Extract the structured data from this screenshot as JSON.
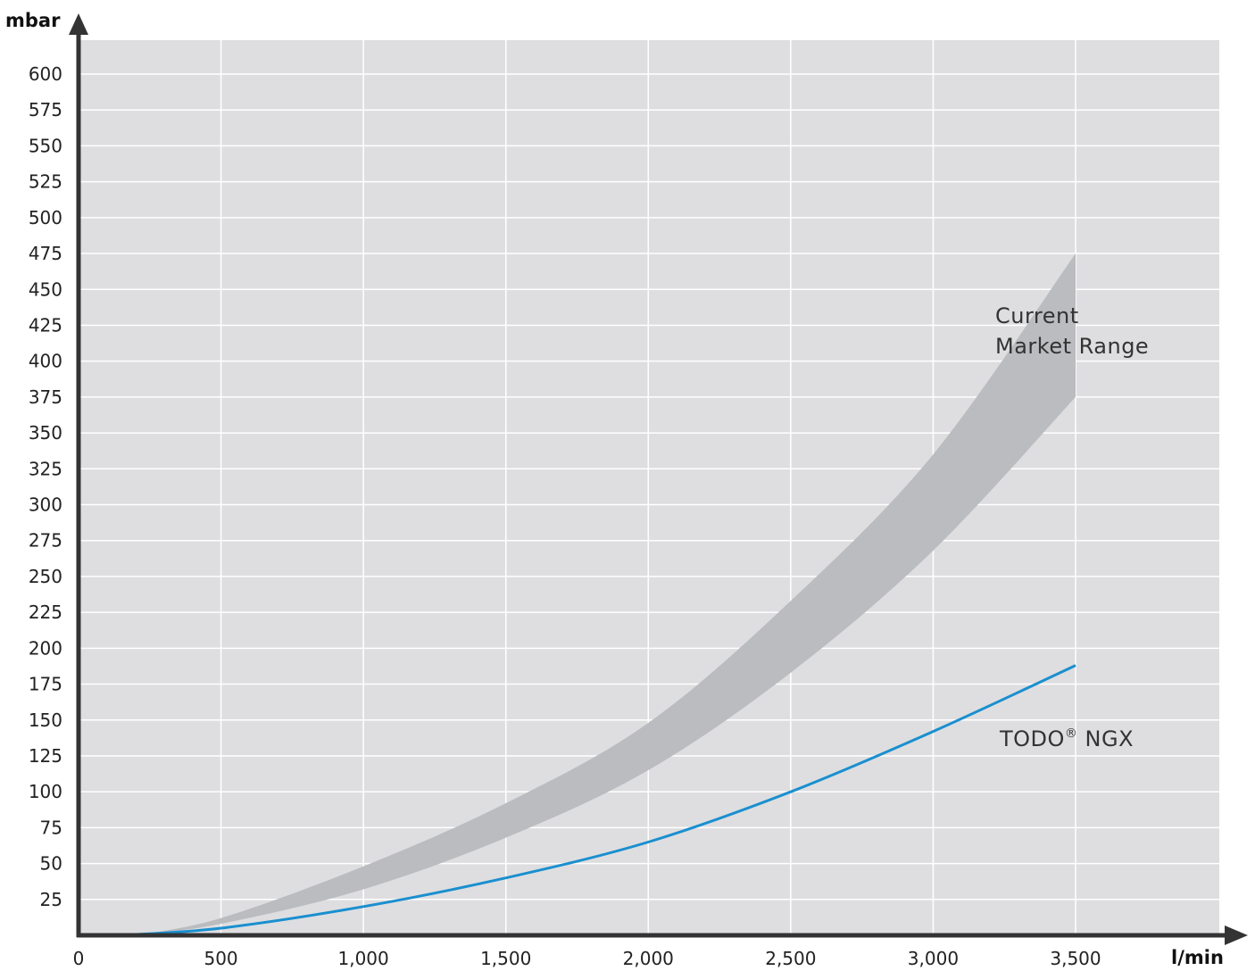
{
  "chart_data": {
    "type": "area",
    "title": "",
    "xlabel": "l/min",
    "ylabel": "mbar",
    "xlim": [
      0,
      3950
    ],
    "ylim": [
      0,
      630
    ],
    "x_ticks": [
      0,
      500,
      1000,
      1500,
      2000,
      2500,
      3000,
      3500
    ],
    "x_tick_labels": [
      "0",
      "500",
      "1,000",
      "1,500",
      "2,000",
      "2,500",
      "3,000",
      "3,500"
    ],
    "y_ticks": [
      25,
      50,
      75,
      100,
      125,
      150,
      175,
      200,
      225,
      250,
      275,
      300,
      325,
      350,
      375,
      400,
      425,
      450,
      475,
      500,
      525,
      550,
      575,
      600
    ],
    "y_tick_labels": [
      "25",
      "50",
      "75",
      "100",
      "125",
      "150",
      "175",
      "200",
      "225",
      "250",
      "275",
      "300",
      "325",
      "350",
      "375",
      "400",
      "425",
      "450",
      "475",
      "500",
      "525",
      "550",
      "575",
      "600"
    ],
    "grid": true,
    "band": {
      "x": [
        200,
        500,
        1000,
        1500,
        2000,
        2500,
        3000,
        3500
      ],
      "upper": [
        0,
        12,
        48,
        92,
        148,
        233,
        335,
        475
      ],
      "lower": [
        0,
        8,
        32,
        68,
        115,
        183,
        268,
        375
      ]
    },
    "series": [
      {
        "x": [
          150,
          500,
          1000,
          1500,
          2000,
          2500,
          3000,
          3500
        ],
        "y": [
          0,
          5,
          20,
          40,
          65,
          100,
          142,
          188
        ]
      }
    ],
    "annotations": {
      "band_label_line1": "Current",
      "band_label_line2": "Market Range",
      "series_label_main": "TODO",
      "series_label_sup": "®",
      "series_label_tail": " NGX"
    },
    "colors": {
      "plot_background": "#dedee0",
      "grid": "#ffffff",
      "band": "#bbbcbf",
      "line": "#1a8fcf",
      "axis": "#333333"
    }
  }
}
